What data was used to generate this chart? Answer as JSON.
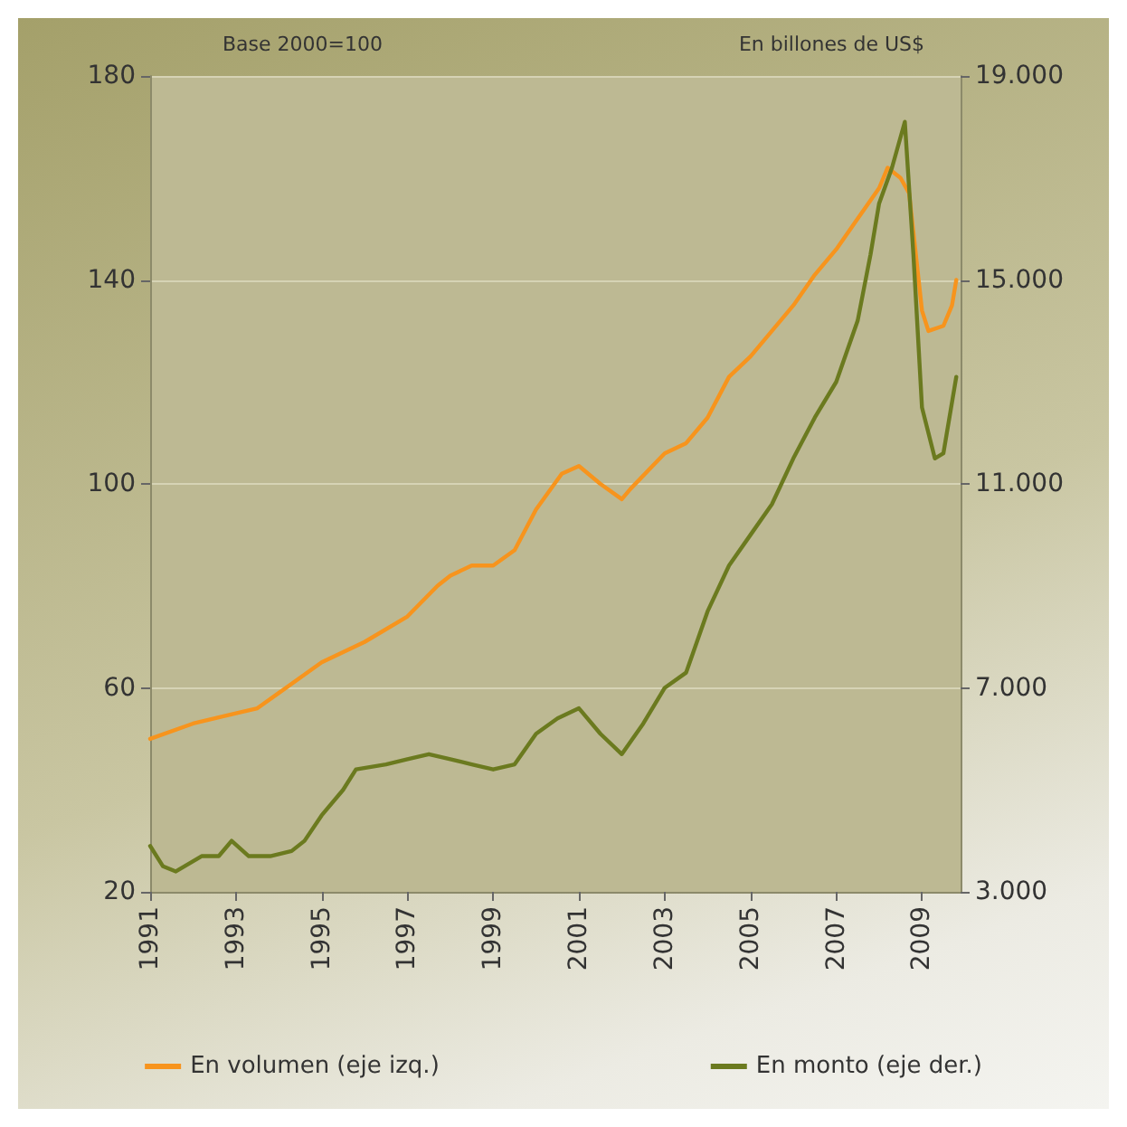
{
  "chart_data": {
    "type": "line",
    "ylabel": "Base 2000=100",
    "y2label": "En billones de US$",
    "xlim": [
      1991,
      2009.9
    ],
    "xticks": [
      1991,
      1993,
      1995,
      1997,
      1999,
      2001,
      2003,
      2005,
      2007,
      2009
    ],
    "ylim": [
      20,
      180
    ],
    "yticks": [
      20,
      60,
      100,
      140,
      180
    ],
    "y2lim": [
      3000,
      19000
    ],
    "y2ticks": [
      {
        "value": 3000,
        "label": "3.000"
      },
      {
        "value": 7000,
        "label": "7.000"
      },
      {
        "value": 11000,
        "label": "11.000"
      },
      {
        "value": 15000,
        "label": "15.000"
      },
      {
        "value": 19000,
        "label": "19.000"
      }
    ],
    "grid": "y",
    "legend": "bottom",
    "marker": "none",
    "line_style": "solid",
    "series": [
      {
        "name": "En volumen (eje izq.)",
        "color": "#f7941d",
        "x": [
          1991,
          1992,
          1993,
          1993.5,
          1994,
          1995,
          1996,
          1997,
          1997.7,
          1998,
          1998.5,
          1999,
          1999.5,
          2000,
          2000.6,
          2001,
          2001.5,
          2002,
          2002.2,
          2003,
          2003.5,
          2004,
          2004.5,
          2005,
          2005.5,
          2006,
          2006.5,
          2007,
          2007.5,
          2008,
          2008.2,
          2008.5,
          2008.7,
          2009,
          2009.15,
          2009.5,
          2009.7,
          2009.8
        ],
        "values": [
          50,
          53,
          55,
          56,
          59,
          65,
          69,
          74,
          80,
          82,
          84,
          84,
          87,
          95,
          102,
          103.5,
          100,
          97,
          99,
          106,
          108,
          113,
          121,
          125,
          130,
          135,
          141,
          146,
          152,
          158,
          162,
          160,
          157,
          134,
          130,
          131,
          135,
          140
        ]
      },
      {
        "name": "En monto (eje der.)",
        "color": "#6b7a1f",
        "axis": "y2",
        "x": [
          1991,
          1991.3,
          1991.6,
          1992.2,
          1992.6,
          1992.9,
          1993.3,
          1993.8,
          1994.3,
          1994.6,
          1995,
          1995.5,
          1995.8,
          1996.5,
          1997,
          1997.5,
          1998,
          1998.5,
          1999,
          1999.5,
          2000,
          2000.5,
          2001,
          2001.5,
          2002,
          2002.5,
          2003,
          2003.5,
          2004,
          2004.5,
          2005,
          2005.5,
          2006,
          2006.5,
          2007,
          2007.5,
          2007.8,
          2008,
          2008.3,
          2008.6,
          2008.8,
          2009,
          2009.3,
          2009.5,
          2009.8
        ],
        "values": [
          3900,
          3500,
          3400,
          3700,
          3700,
          4000,
          3700,
          3700,
          3800,
          4000,
          4500,
          5000,
          5400,
          5500,
          5600,
          5700,
          5600,
          5500,
          5400,
          5500,
          6100,
          6400,
          6600,
          6100,
          5700,
          6300,
          7000,
          7300,
          8500,
          9400,
          10000,
          10600,
          11500,
          12300,
          13000,
          14200,
          15500,
          16500,
          17200,
          18100,
          15500,
          12500,
          11500,
          11600,
          13100
        ]
      }
    ]
  }
}
